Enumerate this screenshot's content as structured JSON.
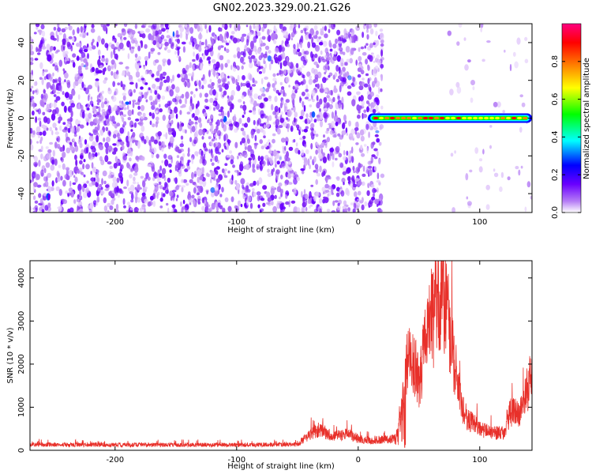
{
  "title": "GN02.2023.329.00.21.G26",
  "chart_data": [
    {
      "type": "heatmap",
      "xlabel": "Height of straight line (km)",
      "ylabel": "Frequency (Hz)",
      "xlim": [
        -270,
        143
      ],
      "ylim": [
        -50,
        50
      ],
      "xticks": [
        -200,
        -100,
        0,
        100
      ],
      "yticks": [
        -40,
        -20,
        0,
        20,
        40
      ],
      "grid": false,
      "colorbar": {
        "label": "Normalized spectral amplitude",
        "range": [
          0,
          1
        ],
        "ticks": [
          0.0,
          0.2,
          0.4,
          0.6,
          0.8
        ],
        "colors": [
          "#ffffff",
          "#b57cf5",
          "#6a00ff",
          "#0000ff",
          "#00ffff",
          "#00ff00",
          "#ffff00",
          "#ff8000",
          "#ff0000",
          "#ff0080"
        ]
      },
      "features": {
        "noise_region_km": [
          -270,
          20
        ],
        "empty_gap_km": [
          20,
          75
        ],
        "signal_line": {
          "frequency_hz": 0,
          "x_start_km": 8,
          "x_end_km": 143,
          "amplitude": 0.9
        }
      }
    },
    {
      "type": "line",
      "xlabel": "Height of straight line (km)",
      "ylabel": "SNR (10 * v/v)",
      "xlim": [
        -270,
        143
      ],
      "ylim": [
        0,
        4400
      ],
      "xticks": [
        -200,
        -100,
        0,
        100
      ],
      "yticks": [
        0,
        1000,
        2000,
        3000,
        4000
      ],
      "grid": false,
      "color": "#e8302a",
      "envelope": {
        "x": [
          -270,
          -200,
          -100,
          -50,
          -40,
          -30,
          -20,
          -10,
          0,
          10,
          20,
          30,
          35,
          40,
          45,
          50,
          55,
          60,
          65,
          70,
          75,
          80,
          85,
          90,
          95,
          100,
          110,
          120,
          125,
          130,
          135,
          140,
          143
        ],
        "y": [
          150,
          140,
          140,
          150,
          420,
          520,
          350,
          450,
          300,
          250,
          280,
          300,
          800,
          2200,
          2400,
          1700,
          2800,
          3200,
          3700,
          4100,
          3300,
          2100,
          1100,
          800,
          700,
          550,
          450,
          450,
          1000,
          950,
          1050,
          1700,
          2000
        ]
      }
    }
  ]
}
